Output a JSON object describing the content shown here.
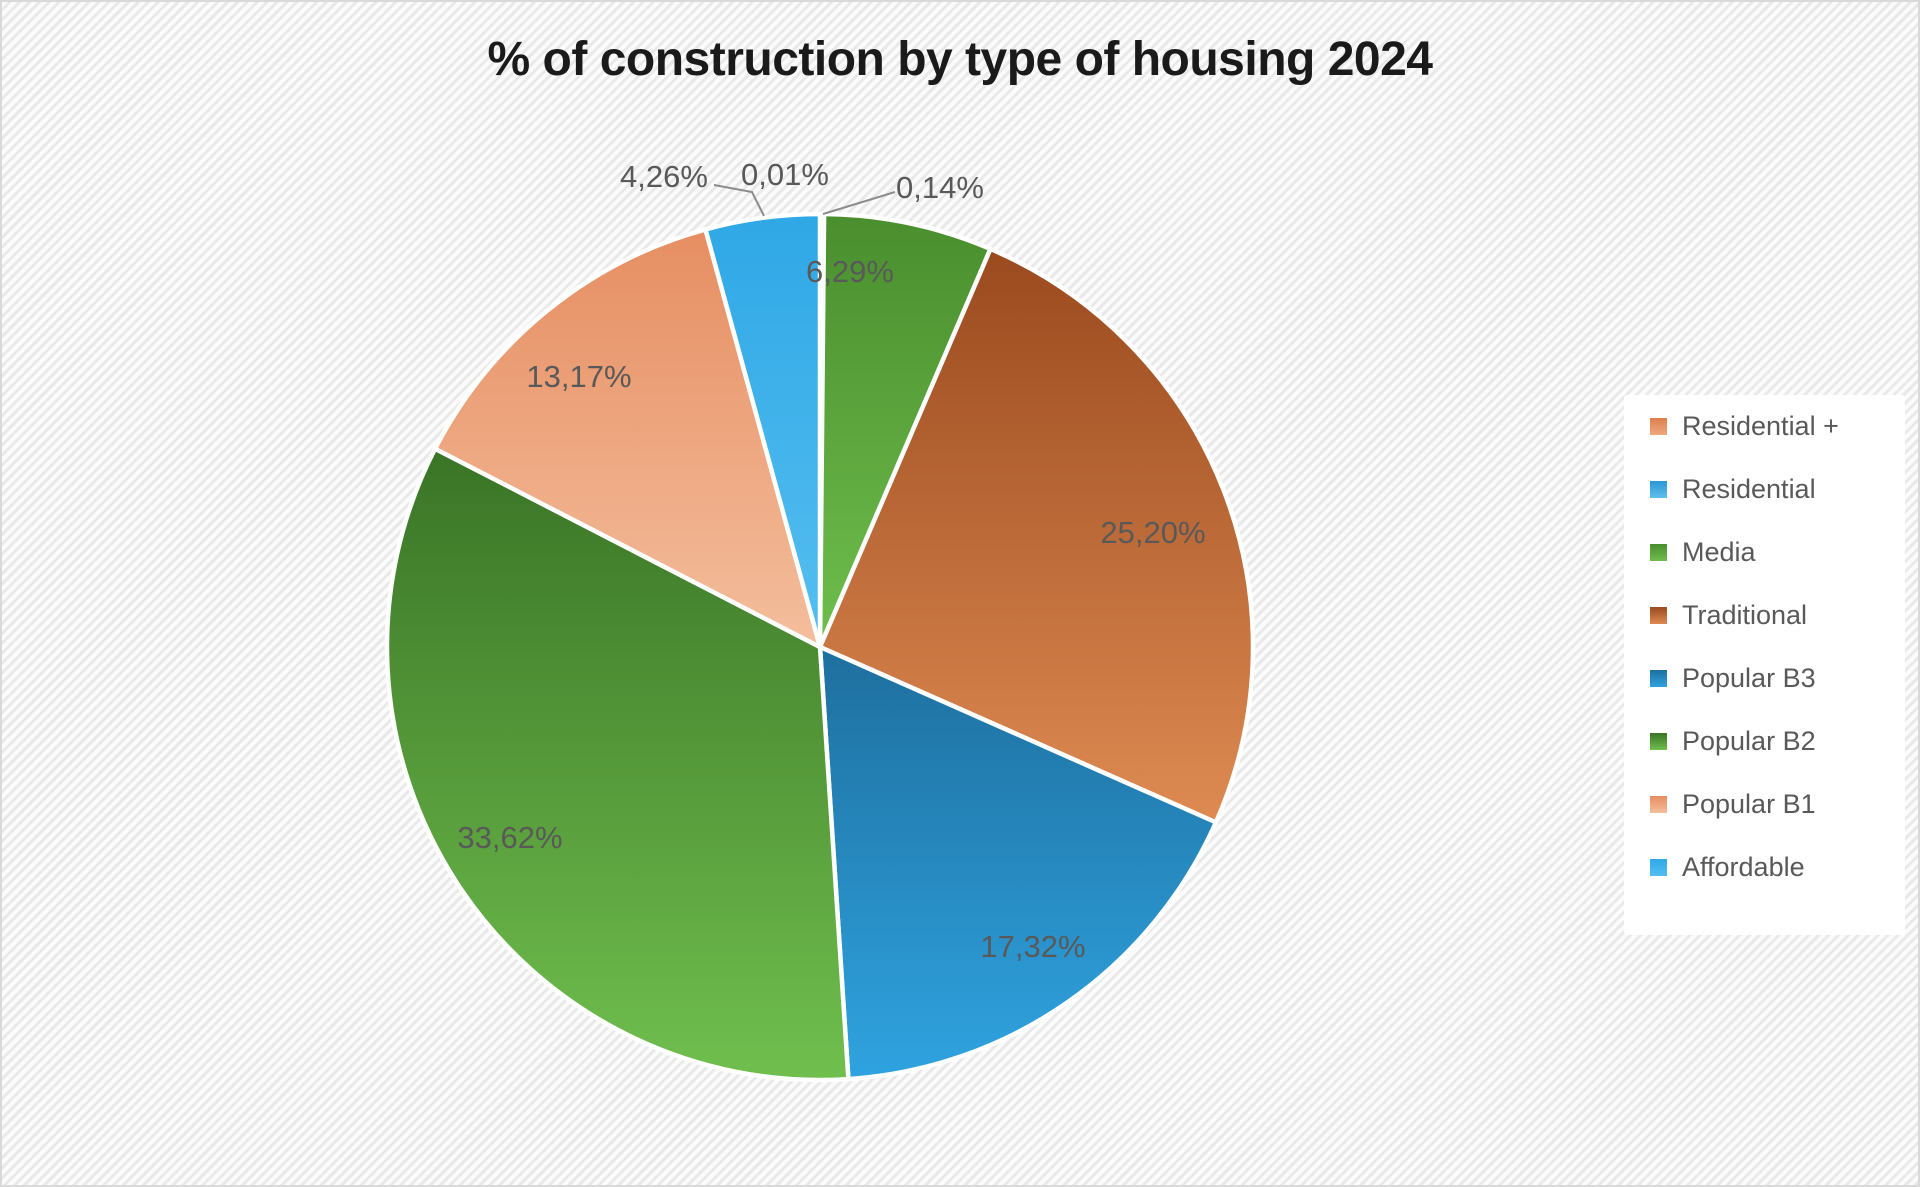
{
  "page": {
    "background_stripe_light": "#fbfbfb",
    "background_stripe_dark": "#e9e9e9",
    "border_color": "#d9d9d9"
  },
  "chart_data": {
    "type": "pie",
    "title": "% of construction by type of housing 2024",
    "title_color": "#1a1a1a",
    "label_color": "#595959",
    "leader_line_color": "#8c8c8c",
    "legend_position": "right",
    "legend_background": "#ffffff",
    "direction": "clockwise",
    "start_angle_deg": -90,
    "slices": [
      {
        "name": "Residential +",
        "value": 0.01,
        "label": "0,01%",
        "color_top": "#de7f4e",
        "color_bottom": "#f0a87e"
      },
      {
        "name": "Residential",
        "value": 0.14,
        "label": "0,14%",
        "color_top": "#2c96d2",
        "color_bottom": "#5fc0ec"
      },
      {
        "name": "Media",
        "value": 6.29,
        "label": "6,29%",
        "color_top": "#4a8e2e",
        "color_bottom": "#6fbe4d"
      },
      {
        "name": "Traditional",
        "value": 25.2,
        "label": "25,20%",
        "color_top": "#9a4a1e",
        "color_bottom": "#de8a52"
      },
      {
        "name": "Popular B3",
        "value": 17.32,
        "label": "17,32%",
        "color_top": "#1e6f9e",
        "color_bottom": "#2fa3e0"
      },
      {
        "name": "Popular B2",
        "value": 33.62,
        "label": "33,62%",
        "color_top": "#3a7426",
        "color_bottom": "#70bf4e"
      },
      {
        "name": "Popular B1",
        "value": 13.17,
        "label": "13,17%",
        "color_top": "#e68e62",
        "color_bottom": "#f4be9d"
      },
      {
        "name": "Affordable",
        "value": 4.26,
        "label": "4,26%",
        "color_top": "#2fa8e6",
        "color_bottom": "#55bef0"
      }
    ]
  }
}
